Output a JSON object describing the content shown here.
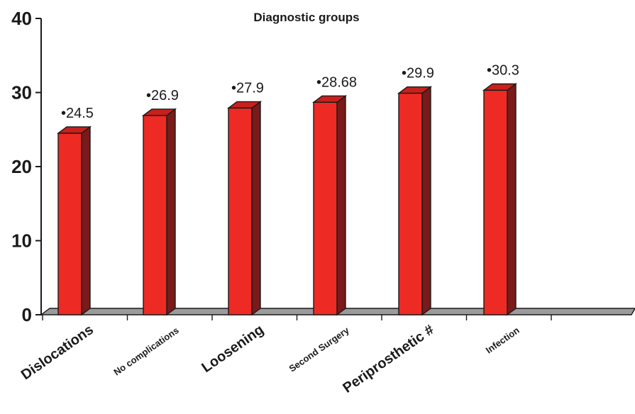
{
  "chart_data": {
    "type": "bar",
    "title": "Diagnostic groups",
    "xlabel": "",
    "ylabel": "",
    "ylim": [
      0,
      40
    ],
    "yticks": [
      "0",
      "10",
      "20",
      "30",
      "40"
    ],
    "grid": false,
    "legend": "none",
    "categories": [
      "Dislocations",
      "No complications",
      "Loosening",
      "Second Surgery",
      "Periprosthetic #",
      "Infection"
    ],
    "values": [
      24.5,
      26.9,
      27.9,
      28.68,
      29.9,
      30.3
    ],
    "data_labels": [
      "•24.5",
      "•26.9",
      "•27.9",
      "•28.68",
      "•29.9",
      "•30.3"
    ],
    "colors": {
      "bar_front": "#ee2a24",
      "bar_side": "#7a1a1a",
      "bar_top": "#c8201c",
      "floor": "#9b9b9b"
    }
  }
}
